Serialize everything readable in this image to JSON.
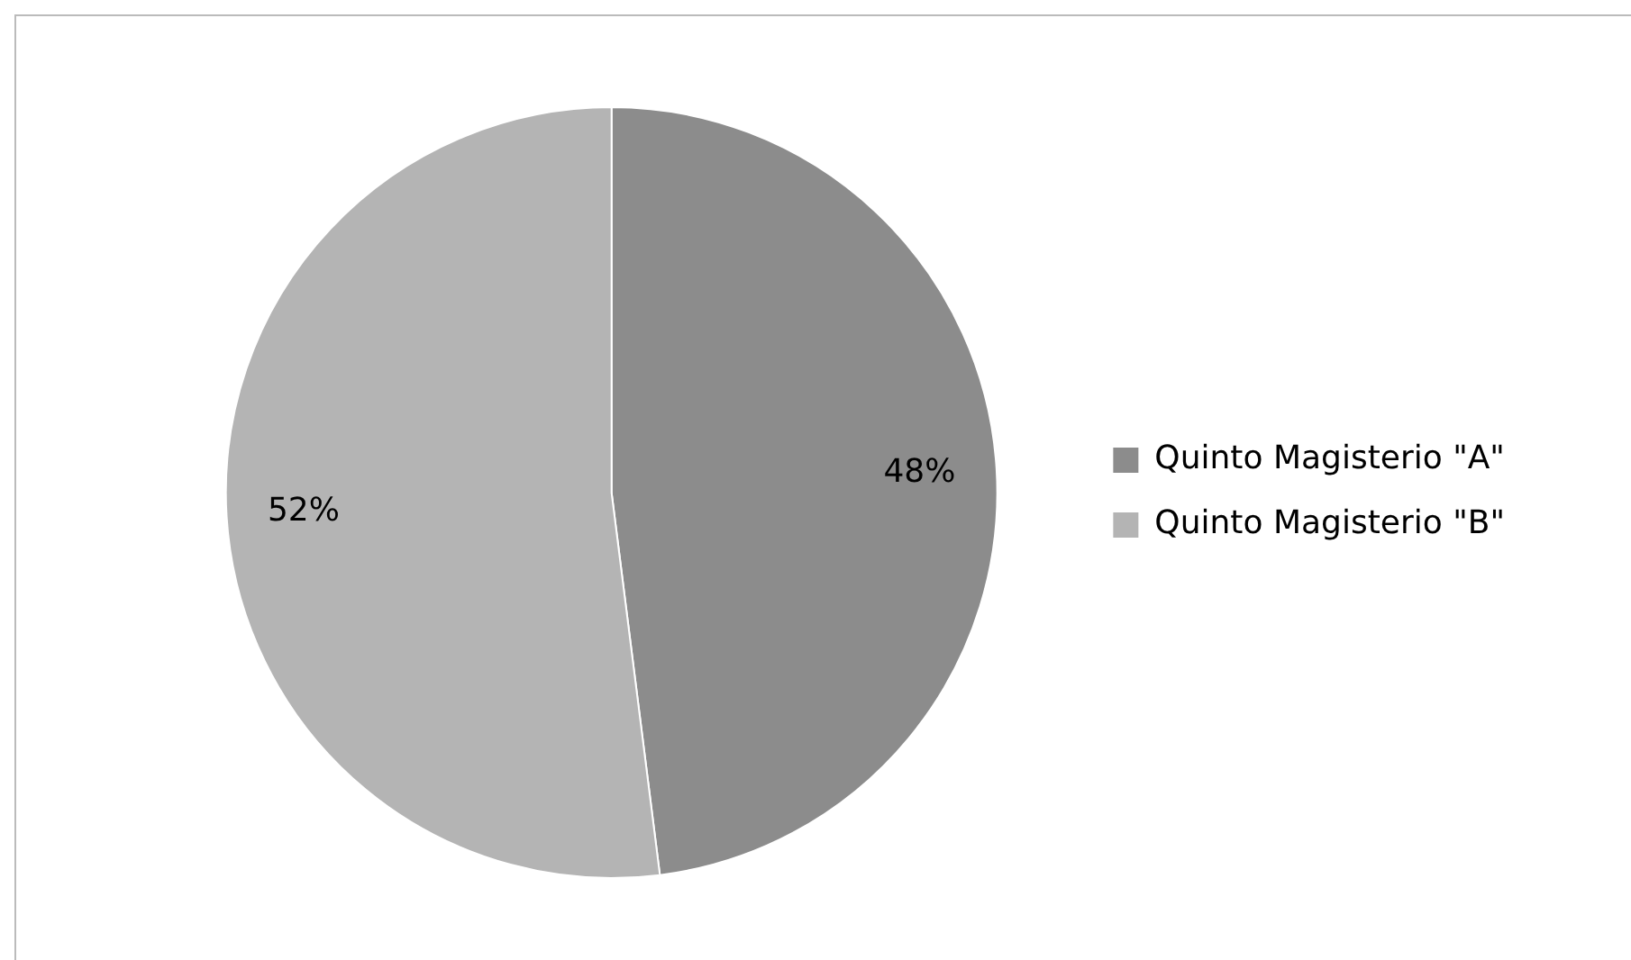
{
  "chart_data": {
    "type": "pie",
    "categories": [
      "Quinto Magisterio \"A\"",
      "Quinto Magisterio \"B\""
    ],
    "values": [
      48,
      52
    ],
    "value_labels": [
      "48%",
      "52%"
    ],
    "colors": [
      "#8c8c8c",
      "#b4b4b4"
    ],
    "legend": "right"
  }
}
